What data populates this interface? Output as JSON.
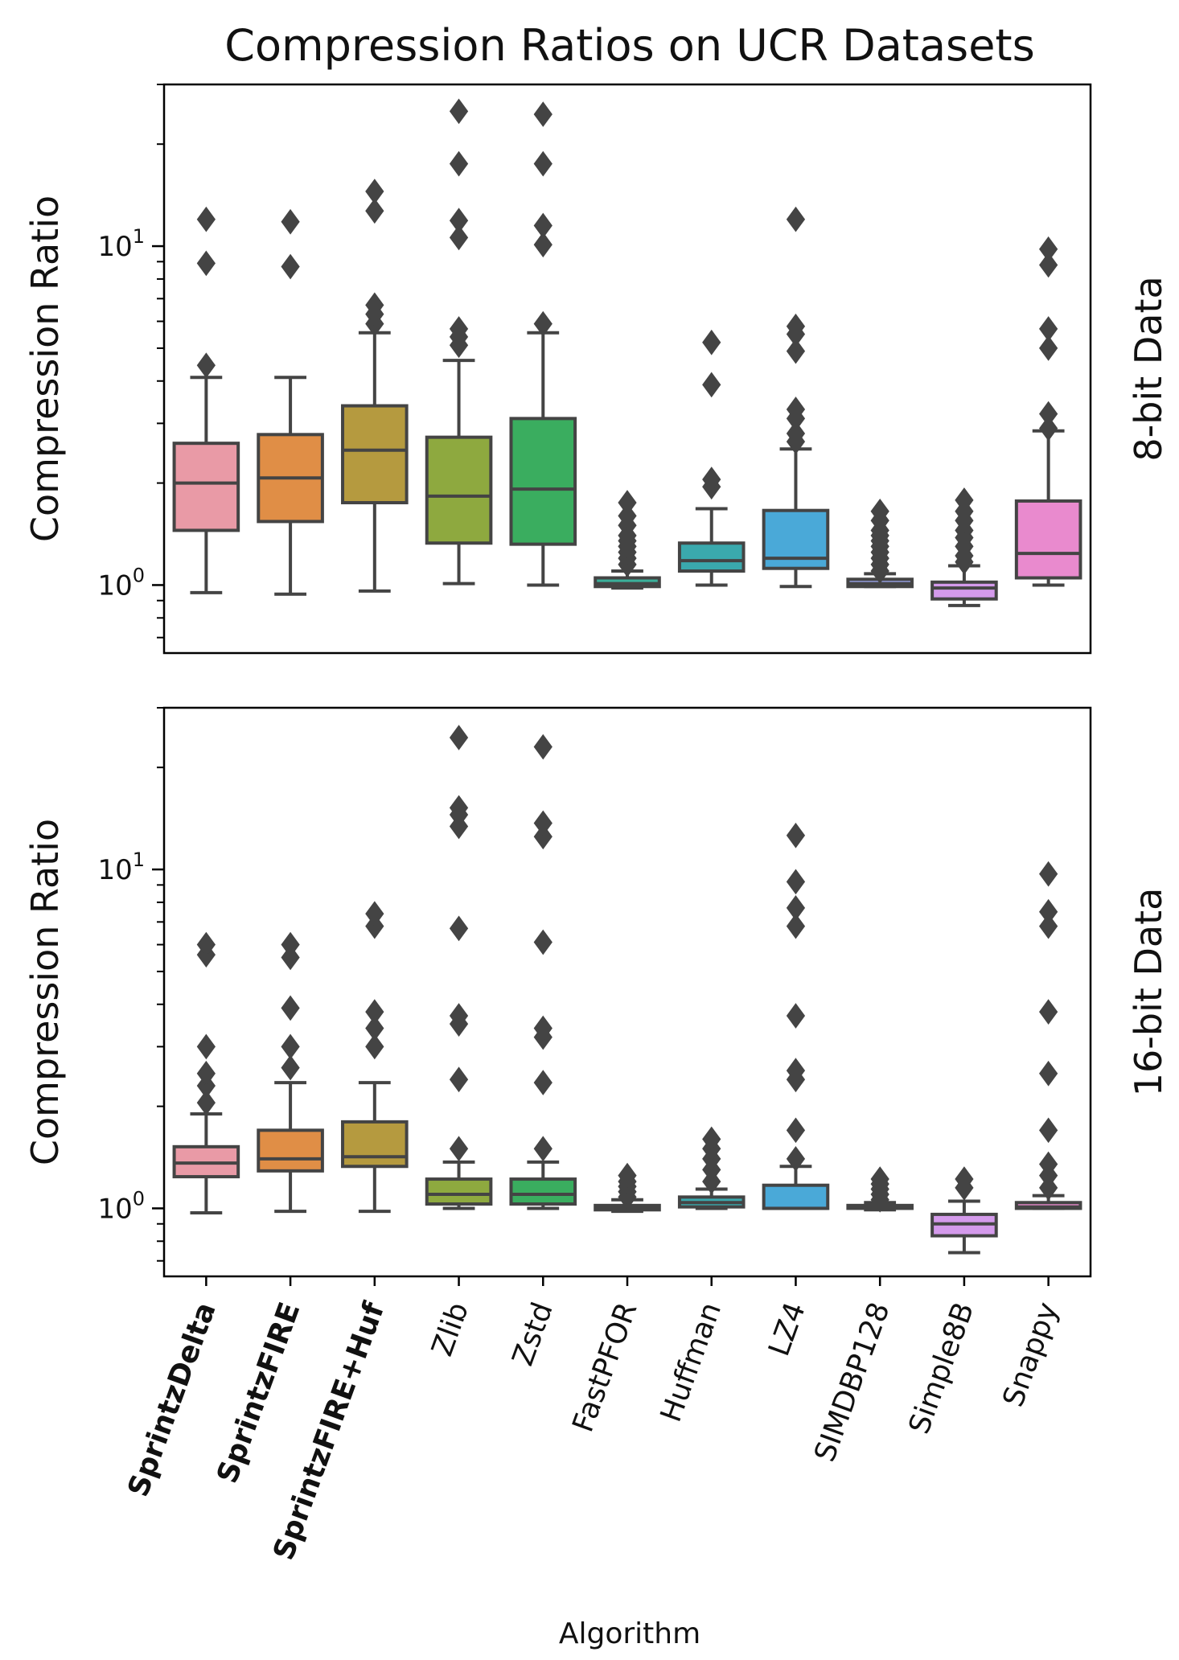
{
  "chart_data": {
    "type": "boxplot",
    "title": "Compression Ratios on UCR Datasets",
    "xlabel": "Algorithm",
    "ylabel": "Compression Ratio",
    "yscale": "log",
    "ylim": [
      0.63,
      30
    ],
    "categories": [
      "SprintzDelta",
      "SprintzFIRE",
      "SprintzFIRE+Huf",
      "Zlib",
      "Zstd",
      "FastPFOR",
      "Huffman",
      "LZ4",
      "SIMDBP128",
      "Simple8B",
      "Snappy"
    ],
    "bold_categories": [
      "SprintzDelta",
      "SprintzFIRE",
      "SprintzFIRE+Huf"
    ],
    "colors": [
      "#e99aa6",
      "#e08e46",
      "#b59a3f",
      "#8ea93f",
      "#3aad5f",
      "#3aaf9a",
      "#3aa9ad",
      "#4aa9d8",
      "#9aa5eb",
      "#d49aeb",
      "#e98ace"
    ],
    "panels": [
      {
        "name": "8-bit Data",
        "row_label": "8-bit Data",
        "boxes": [
          {
            "whislo": 0.95,
            "q1": 1.45,
            "med": 2.0,
            "q3": 2.62,
            "whishi": 4.1,
            "fliers": [
              4.45,
              8.9,
              12.0
            ]
          },
          {
            "whislo": 0.94,
            "q1": 1.54,
            "med": 2.07,
            "q3": 2.78,
            "whishi": 4.1,
            "fliers": [
              8.7,
              11.8
            ]
          },
          {
            "whislo": 0.96,
            "q1": 1.75,
            "med": 2.5,
            "q3": 3.38,
            "whishi": 5.55,
            "fliers": [
              5.9,
              6.3,
              6.7,
              12.7,
              14.5
            ]
          },
          {
            "whislo": 1.01,
            "q1": 1.33,
            "med": 1.83,
            "q3": 2.73,
            "whishi": 4.6,
            "fliers": [
              5.1,
              5.4,
              5.7,
              10.6,
              11.9,
              17.5,
              25.0
            ]
          },
          {
            "whislo": 1.0,
            "q1": 1.32,
            "med": 1.92,
            "q3": 3.1,
            "whishi": 5.55,
            "fliers": [
              5.9,
              10.1,
              11.5,
              17.5,
              24.5
            ]
          },
          {
            "whislo": 0.98,
            "q1": 0.99,
            "med": 1.01,
            "q3": 1.05,
            "whishi": 1.1,
            "fliers": [
              1.15,
              1.2,
              1.25,
              1.3,
              1.35,
              1.4,
              1.5,
              1.6,
              1.75
            ]
          },
          {
            "whislo": 1.0,
            "q1": 1.1,
            "med": 1.18,
            "q3": 1.33,
            "whishi": 1.68,
            "fliers": [
              1.95,
              2.05,
              3.9,
              5.2
            ]
          },
          {
            "whislo": 0.99,
            "q1": 1.12,
            "med": 1.2,
            "q3": 1.66,
            "whishi": 2.52,
            "fliers": [
              2.65,
              2.8,
              3.1,
              3.3,
              4.9,
              5.5,
              5.8,
              12.0
            ]
          },
          {
            "whislo": 0.99,
            "q1": 0.99,
            "med": 1.01,
            "q3": 1.04,
            "whishi": 1.08,
            "fliers": [
              1.1,
              1.15,
              1.2,
              1.25,
              1.3,
              1.35,
              1.4,
              1.45,
              1.55,
              1.65
            ]
          },
          {
            "whislo": 0.87,
            "q1": 0.91,
            "med": 0.98,
            "q3": 1.02,
            "whishi": 1.14,
            "fliers": [
              1.17,
              1.22,
              1.3,
              1.38,
              1.45,
              1.55,
              1.65,
              1.78
            ]
          },
          {
            "whislo": 1.0,
            "q1": 1.05,
            "med": 1.24,
            "q3": 1.77,
            "whishi": 2.85,
            "fliers": [
              2.9,
              3.2,
              5.0,
              5.7,
              8.8,
              9.8
            ]
          }
        ]
      },
      {
        "name": "16-bit Data",
        "row_label": "16-bit Data",
        "boxes": [
          {
            "whislo": 0.97,
            "q1": 1.24,
            "med": 1.36,
            "q3": 1.52,
            "whishi": 1.9,
            "fliers": [
              2.05,
              2.3,
              2.5,
              3.0,
              5.6,
              6.0
            ]
          },
          {
            "whislo": 0.98,
            "q1": 1.29,
            "med": 1.4,
            "q3": 1.7,
            "whishi": 2.35,
            "fliers": [
              2.6,
              3.0,
              3.9,
              5.5,
              6.0
            ]
          },
          {
            "whislo": 0.98,
            "q1": 1.33,
            "med": 1.42,
            "q3": 1.8,
            "whishi": 2.35,
            "fliers": [
              3.0,
              3.4,
              3.8,
              6.8,
              7.4
            ]
          },
          {
            "whislo": 1.0,
            "q1": 1.03,
            "med": 1.1,
            "q3": 1.22,
            "whishi": 1.37,
            "fliers": [
              1.5,
              2.4,
              3.5,
              3.7,
              6.7,
              13.4,
              14.5,
              15.2,
              24.5
            ]
          },
          {
            "whislo": 1.0,
            "q1": 1.03,
            "med": 1.1,
            "q3": 1.22,
            "whishi": 1.37,
            "fliers": [
              1.5,
              2.35,
              3.2,
              3.4,
              6.1,
              12.5,
              13.7,
              23.0
            ]
          },
          {
            "whislo": 0.98,
            "q1": 0.99,
            "med": 1.0,
            "q3": 1.02,
            "whishi": 1.06,
            "fliers": [
              1.08,
              1.12,
              1.16,
              1.2,
              1.25
            ]
          },
          {
            "whislo": 1.0,
            "q1": 1.01,
            "med": 1.04,
            "q3": 1.08,
            "whishi": 1.14,
            "fliers": [
              1.2,
              1.3,
              1.4,
              1.5,
              1.6
            ]
          },
          {
            "whislo": 1.0,
            "q1": 1.0,
            "med": 1.0,
            "q3": 1.17,
            "whishi": 1.33,
            "fliers": [
              1.4,
              1.7,
              2.4,
              2.55,
              3.7,
              6.8,
              7.7,
              9.2,
              12.6
            ]
          },
          {
            "whislo": 0.99,
            "q1": 1.0,
            "med": 1.01,
            "q3": 1.02,
            "whishi": 1.04,
            "fliers": [
              1.06,
              1.1,
              1.14,
              1.18,
              1.22
            ]
          },
          {
            "whislo": 0.74,
            "q1": 0.83,
            "med": 0.9,
            "q3": 0.96,
            "whishi": 1.05,
            "fliers": [
              1.15,
              1.22
            ]
          },
          {
            "whislo": 1.0,
            "q1": 1.0,
            "med": 1.01,
            "q3": 1.04,
            "whishi": 1.09,
            "fliers": [
              1.15,
              1.25,
              1.35,
              1.7,
              2.5,
              3.8,
              6.8,
              7.5,
              9.7
            ]
          }
        ]
      }
    ]
  }
}
